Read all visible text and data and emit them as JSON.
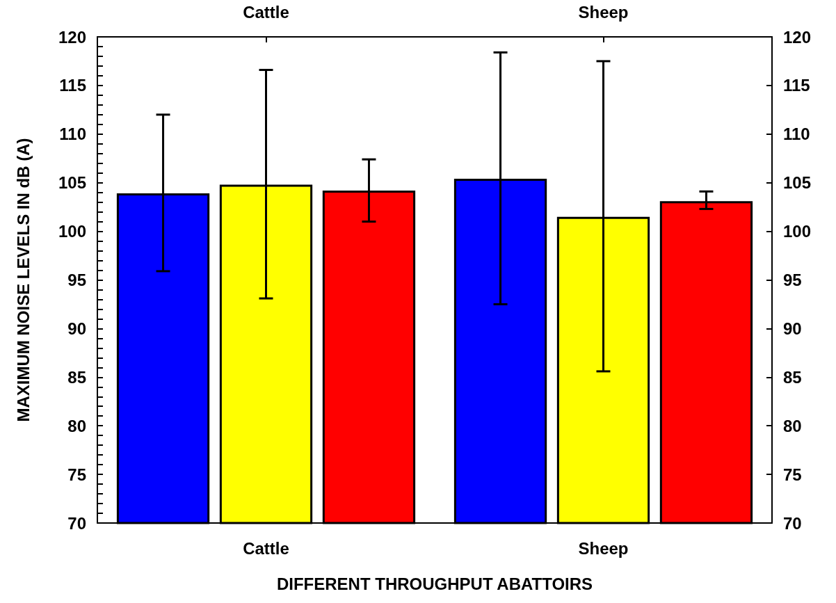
{
  "chart_data": {
    "type": "bar",
    "xlabel": "DIFFERENT THROUGHPUT ABATTOIRS",
    "ylabel": "MAXIMUM NOISE LEVELS IN dB (A)",
    "categories": [
      "Cattle",
      "Sheep"
    ],
    "series": [
      {
        "color": "#0000ff",
        "values": [
          103.9,
          105.4
        ],
        "errors": [
          [
            95.9,
            112.0
          ],
          [
            92.5,
            118.4
          ]
        ]
      },
      {
        "color": "#ffff00",
        "values": [
          104.8,
          101.5
        ],
        "errors": [
          [
            93.1,
            116.6
          ],
          [
            85.6,
            117.5
          ]
        ]
      },
      {
        "color": "#ff0000",
        "values": [
          104.2,
          103.1
        ],
        "errors": [
          [
            101.0,
            107.4
          ],
          [
            102.3,
            104.1
          ]
        ]
      }
    ],
    "ylim": [
      70,
      120
    ],
    "yticks": [
      70,
      {
        "value": 71,
        "label": null
      },
      {
        "value": 72,
        "label": null
      },
      {
        "value": 73,
        "label": null
      },
      {
        "value": 74,
        "label": null
      },
      75,
      {
        "value": 76,
        "label": null
      },
      {
        "value": 77,
        "label": null
      },
      {
        "value": 78,
        "label": null
      },
      {
        "value": 79,
        "label": null
      },
      80,
      {
        "value": 81,
        "label": null
      },
      {
        "value": 82,
        "label": null
      },
      {
        "value": 83,
        "label": null
      },
      {
        "value": 84,
        "label": null
      },
      85,
      {
        "value": 86,
        "label": null
      },
      {
        "value": 87,
        "label": null
      },
      {
        "value": 88,
        "label": null
      },
      {
        "value": 89,
        "label": null
      },
      90,
      {
        "value": 91,
        "label": null
      },
      {
        "value": 92,
        "label": null
      },
      {
        "value": 93,
        "label": null
      },
      {
        "value": 94,
        "label": null
      },
      95,
      {
        "value": 96,
        "label": null
      },
      {
        "value": 97,
        "label": null
      },
      {
        "value": 98,
        "label": null
      },
      {
        "value": 99,
        "label": null
      },
      100,
      {
        "value": 101,
        "label": null
      },
      {
        "value": 102,
        "label": null
      },
      {
        "value": 103,
        "label": null
      },
      {
        "value": 104,
        "label": null
      },
      105,
      {
        "value": 106,
        "label": null
      },
      {
        "value": 107,
        "label": null
      },
      {
        "value": 108,
        "label": null
      },
      {
        "value": 109,
        "label": null
      },
      110,
      {
        "value": 111,
        "label": null
      },
      {
        "value": 112,
        "label": null
      },
      {
        "value": 113,
        "label": null
      },
      {
        "value": 114,
        "label": null
      },
      115,
      {
        "value": 116,
        "label": null
      },
      {
        "value": 117,
        "label": null
      },
      {
        "value": 118,
        "label": null
      },
      {
        "value": 119,
        "label": null
      },
      120
    ],
    "y2lim": [
      70,
      120
    ],
    "y2ticks": [
      70,
      75,
      80,
      85,
      90,
      95,
      100,
      105,
      110,
      115,
      120
    ],
    "grid": false
  }
}
